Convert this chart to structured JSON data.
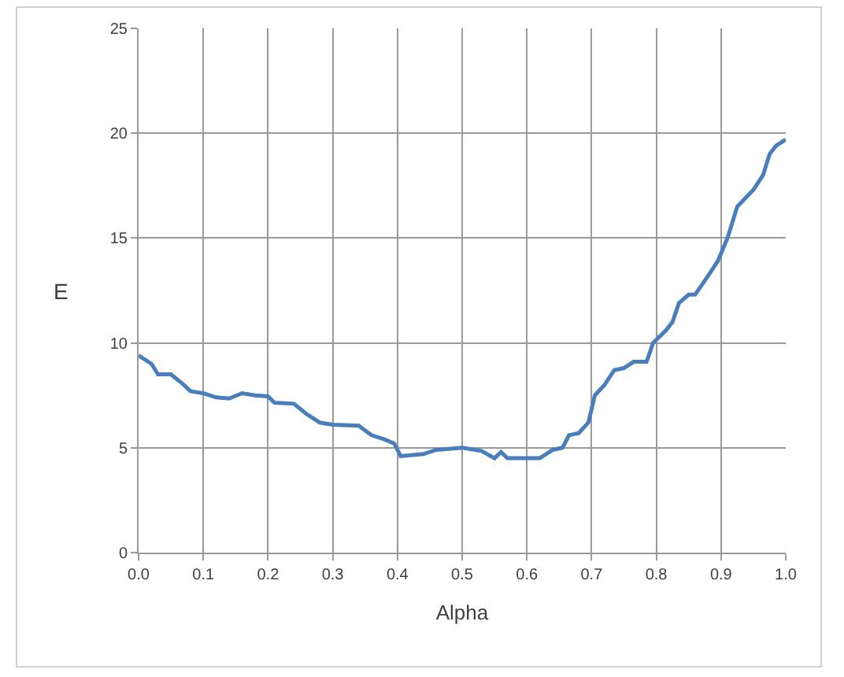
{
  "chart_data": {
    "type": "line",
    "xlabel": "Alpha",
    "ylabel": "E",
    "x": [
      0.0,
      0.02,
      0.03,
      0.05,
      0.07,
      0.08,
      0.1,
      0.12,
      0.14,
      0.16,
      0.18,
      0.2,
      0.21,
      0.24,
      0.26,
      0.28,
      0.3,
      0.34,
      0.36,
      0.38,
      0.395,
      0.405,
      0.44,
      0.46,
      0.5,
      0.53,
      0.55,
      0.56,
      0.57,
      0.62,
      0.64,
      0.655,
      0.665,
      0.68,
      0.695,
      0.705,
      0.72,
      0.735,
      0.75,
      0.765,
      0.785,
      0.795,
      0.815,
      0.825,
      0.835,
      0.85,
      0.86,
      0.88,
      0.895,
      0.91,
      0.925,
      0.95,
      0.965,
      0.975,
      0.985,
      1.0
    ],
    "series": [
      {
        "color": "#4a7ebb",
        "values": [
          9.4,
          9.0,
          8.5,
          8.5,
          8.0,
          7.7,
          7.6,
          7.4,
          7.35,
          7.6,
          7.5,
          7.45,
          7.15,
          7.1,
          6.6,
          6.2,
          6.1,
          6.05,
          5.6,
          5.4,
          5.2,
          4.6,
          4.7,
          4.9,
          5.0,
          4.85,
          4.5,
          4.8,
          4.5,
          4.5,
          4.9,
          5.0,
          5.6,
          5.7,
          6.2,
          7.5,
          8.0,
          8.7,
          8.8,
          9.1,
          9.1,
          10.0,
          10.6,
          11.0,
          11.9,
          12.3,
          12.3,
          13.2,
          13.9,
          15.0,
          16.5,
          17.3,
          18.0,
          19.0,
          19.4,
          19.7
        ]
      }
    ],
    "xlim": [
      0,
      1
    ],
    "xticks": [
      {
        "value": 0,
        "label": "0.0"
      },
      {
        "value": 0.1,
        "label": "0.1"
      },
      {
        "value": 0.2,
        "label": "0.2"
      },
      {
        "value": 0.3,
        "label": "0.3"
      },
      {
        "value": 0.4,
        "label": "0.4"
      },
      {
        "value": 0.5,
        "label": "0.5"
      },
      {
        "value": 0.6,
        "label": "0.6"
      },
      {
        "value": 0.7,
        "label": "0.7"
      },
      {
        "value": 0.8,
        "label": "0.8"
      },
      {
        "value": 0.9,
        "label": "0.9"
      },
      {
        "value": 1,
        "label": "1.0"
      }
    ],
    "ylim": [
      0,
      25
    ],
    "yticks": [
      0,
      5,
      10,
      15,
      20,
      25
    ],
    "grid": true,
    "marker": "none",
    "line_style": "solid"
  }
}
